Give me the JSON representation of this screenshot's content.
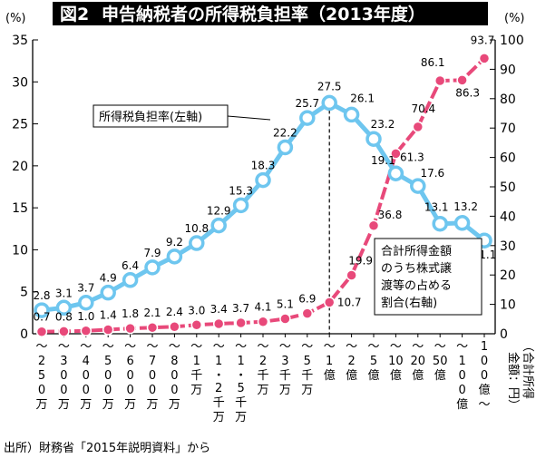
{
  "title_num": "図2",
  "title": "申告納税者の所得税負担率（2013年度）",
  "left_unit": "(%)",
  "right_unit": "(%)",
  "source": "出所）財務省「2015年説明資料」から",
  "legend_left": "所得税負担率(左軸)",
  "legend_right_lines": [
    "合計所得金額",
    "のうち株式譲",
    "渡等の占める",
    "割合(右軸)"
  ],
  "x_unit_label": [
    "（合計所得",
    "金額：円）"
  ],
  "colors": {
    "blue": "#6ec6ef",
    "pink": "#e8497a",
    "marker_stroke": "#ffffff"
  },
  "chart_data": {
    "type": "line",
    "categories": [
      [
        "〜",
        "2",
        "5",
        "0",
        "万"
      ],
      [
        "〜",
        "3",
        "0",
        "0",
        "万"
      ],
      [
        "〜",
        "4",
        "0",
        "0",
        "万"
      ],
      [
        "〜",
        "5",
        "0",
        "0",
        "万"
      ],
      [
        "〜",
        "6",
        "0",
        "0",
        "万"
      ],
      [
        "〜",
        "7",
        "0",
        "0",
        "万"
      ],
      [
        "〜",
        "8",
        "0",
        "0",
        "万"
      ],
      [
        "〜",
        "1",
        "千",
        "万"
      ],
      [
        "〜",
        "1",
        "・",
        "2",
        "千",
        "万"
      ],
      [
        "〜",
        "1",
        "・",
        "5",
        "千",
        "万"
      ],
      [
        "〜",
        "2",
        "千",
        "万"
      ],
      [
        "〜",
        "3",
        "千",
        "万"
      ],
      [
        "〜",
        "5",
        "千",
        "万"
      ],
      [
        "〜",
        "1",
        "億"
      ],
      [
        "〜",
        "2",
        "億"
      ],
      [
        "〜",
        "5",
        "億"
      ],
      [
        "〜",
        "10",
        "億"
      ],
      [
        "〜",
        "20",
        "億"
      ],
      [
        "〜",
        "50",
        "億"
      ],
      [
        "〜",
        "1",
        "0",
        "0",
        "億"
      ],
      [
        "1",
        "0",
        "0",
        "億",
        "〜"
      ]
    ],
    "series": [
      {
        "axis": "left",
        "values": [
          2.8,
          3.1,
          3.7,
          4.9,
          6.4,
          7.9,
          9.2,
          10.8,
          12.9,
          15.3,
          18.3,
          22.2,
          25.7,
          27.5,
          26.1,
          23.2,
          19.1,
          17.6,
          13.1,
          13.2,
          11.1
        ],
        "labels": [
          "2.8",
          "3.1",
          "3.7",
          "4.9",
          "6.4",
          "7.9",
          "9.2",
          "10.8",
          "12.9",
          "15.3",
          "18.3",
          "22.2",
          "25.7",
          "27.5",
          "26.1",
          "23.2",
          "19.1",
          "17.6",
          "13.1",
          "13.2",
          "11.1"
        ]
      },
      {
        "axis": "right",
        "values": [
          0.7,
          0.8,
          1.0,
          1.4,
          1.8,
          2.1,
          2.4,
          3.0,
          3.4,
          3.7,
          4.1,
          5.1,
          6.9,
          10.7,
          19.9,
          36.8,
          61.3,
          70.4,
          86.1,
          86.3,
          93.7
        ],
        "labels": [
          "0.7",
          "0.8",
          "1.0",
          "1.4",
          "1.8",
          "2.1",
          "2.4",
          "3.0",
          "3.4",
          "3.7",
          "4.1",
          "5.1",
          "6.9",
          "10.7",
          "19.9",
          "36.8",
          "61.3",
          "70.4",
          "86.1",
          "86.3",
          "93.7"
        ]
      }
    ],
    "y_left": {
      "min": 0,
      "max": 35,
      "ticks": [
        "0",
        "5",
        "10",
        "15",
        "20",
        "25",
        "30",
        "35"
      ]
    },
    "y_right": {
      "min": 0,
      "max": 100,
      "ticks": [
        "0",
        "10",
        "20",
        "30",
        "40",
        "50",
        "60",
        "70",
        "80",
        "90",
        "100"
      ]
    },
    "annotations": [
      "dashed vertical line at 〜1億"
    ],
    "grid": false
  }
}
